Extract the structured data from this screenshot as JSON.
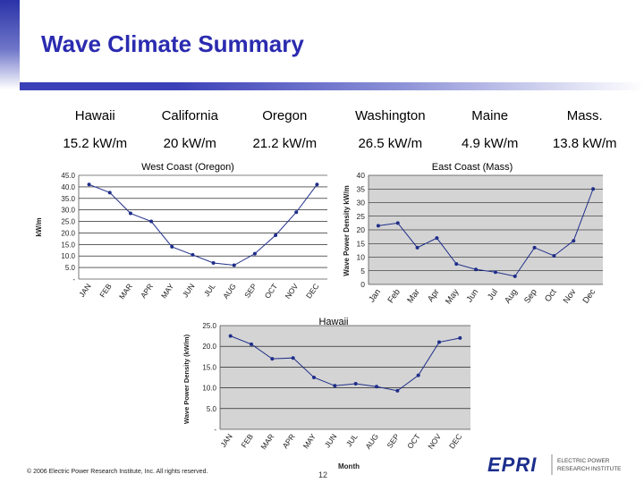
{
  "slide": {
    "title": "Wave Climate Summary",
    "footer": "© 2006 Electric Power Research Institute, Inc. All rights reserved.",
    "page_number": "12",
    "brand_color": "#2b2bb0"
  },
  "summary_table": {
    "headers": [
      "Hawaii",
      "California",
      "Oregon",
      "Washington",
      "Maine",
      "Mass."
    ],
    "values": [
      "15.2 kW/m",
      "20 kW/m",
      "21.2 kW/m",
      "26.5 kW/m",
      "4.9 kW/m",
      "13.8 kW/m"
    ]
  },
  "logo": {
    "mark": "EPRI",
    "line1": "ELECTRIC POWER",
    "line2": "RESEARCH INSTITUTE"
  },
  "chart_data": [
    {
      "id": "oregon",
      "type": "line",
      "title": "West Coast (Oregon)",
      "xlabel": "",
      "ylabel": "kW/m",
      "categories": [
        "JAN",
        "FEB",
        "MAR",
        "APR",
        "MAY",
        "JUN",
        "JUL",
        "AUG",
        "SEP",
        "OCT",
        "NOV",
        "DEC"
      ],
      "values": [
        41.0,
        37.5,
        28.5,
        25.0,
        14.0,
        10.5,
        7.0,
        6.0,
        11.0,
        19.0,
        29.0,
        41.0
      ],
      "ylim": [
        0,
        45
      ],
      "yticks": [
        0,
        5,
        10,
        15,
        20,
        25,
        30,
        35,
        40,
        45
      ],
      "ytick_labels": [
        "-",
        "5.0",
        "10.0",
        "15.0",
        "20.0",
        "25.0",
        "30.0",
        "35.0",
        "40.0",
        "45.0"
      ],
      "grid": true,
      "color": "#1f2e8a"
    },
    {
      "id": "mass",
      "type": "line",
      "title": "East Coast (Mass)",
      "xlabel": "",
      "ylabel": "Wave Power Density kW/m",
      "categories": [
        "Jan",
        "Feb",
        "Mar",
        "Apr",
        "May",
        "Jun",
        "Jul",
        "Aug",
        "Sep",
        "Oct",
        "Nov",
        "Dec"
      ],
      "values": [
        21.5,
        22.5,
        13.5,
        17.0,
        7.5,
        5.5,
        4.5,
        3.0,
        13.5,
        10.5,
        16.0,
        35.0
      ],
      "ylim": [
        0,
        40
      ],
      "yticks": [
        0,
        5,
        10,
        15,
        20,
        25,
        30,
        35,
        40
      ],
      "ytick_labels": [
        "0",
        "5",
        "10",
        "15",
        "20",
        "25",
        "30",
        "35",
        "40"
      ],
      "grid": true,
      "color": "#1f2e8a"
    },
    {
      "id": "hawaii",
      "type": "line",
      "title": "Hawaii",
      "xlabel": "Month",
      "ylabel": "Wave Power Density (kW/m)",
      "categories": [
        "JAN",
        "FEB",
        "MAR",
        "APR",
        "MAY",
        "JUN",
        "JUL",
        "AUG",
        "SEP",
        "OCT",
        "NOV",
        "DEC"
      ],
      "values": [
        22.5,
        20.5,
        17.0,
        17.2,
        12.5,
        10.5,
        11.0,
        10.3,
        9.3,
        13.0,
        21.0,
        22.0
      ],
      "ylim": [
        0,
        25
      ],
      "yticks": [
        0,
        5,
        10,
        15,
        20,
        25
      ],
      "ytick_labels": [
        "-",
        "5.0",
        "10.0",
        "15.0",
        "20.0",
        "25.0"
      ],
      "grid": true,
      "color": "#1f2e8a"
    }
  ]
}
